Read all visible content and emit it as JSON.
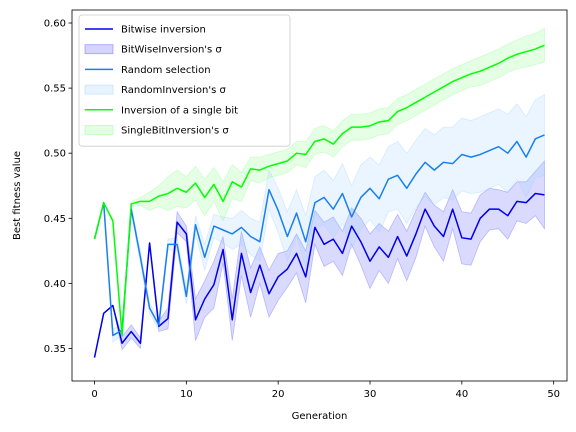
{
  "chart_data": {
    "type": "line",
    "xlabel": "Generation",
    "ylabel": "Best fitness value",
    "xlim": [
      -2.45,
      51.45
    ],
    "ylim": [
      0.325,
      0.61
    ],
    "x_ticks": [
      0,
      10,
      20,
      30,
      40,
      50
    ],
    "y_ticks": [
      0.35,
      0.4,
      0.45,
      0.5,
      0.55,
      0.6
    ],
    "x_tick_labels": [
      "0",
      "10",
      "20",
      "30",
      "40",
      "50"
    ],
    "y_tick_labels": [
      "0.35",
      "0.40",
      "0.45",
      "0.50",
      "0.55",
      "0.60"
    ],
    "grid": false,
    "legend_position": "top-left",
    "x": [
      0,
      1,
      2,
      3,
      4,
      5,
      6,
      7,
      8,
      9,
      10,
      11,
      12,
      13,
      14,
      15,
      16,
      17,
      18,
      19,
      20,
      21,
      22,
      23,
      24,
      25,
      26,
      27,
      28,
      29,
      30,
      31,
      32,
      33,
      34,
      35,
      36,
      37,
      38,
      39,
      40,
      41,
      42,
      43,
      44,
      45,
      46,
      47,
      48,
      49
    ],
    "series": [
      {
        "name": "Bitwise inversion",
        "band_name": "BitWiseInversion's σ",
        "color": "#0000ee",
        "band_color": "#5555ff",
        "values": [
          0.343,
          0.377,
          0.383,
          0.354,
          0.363,
          0.354,
          0.431,
          0.367,
          0.373,
          0.447,
          0.438,
          0.372,
          0.388,
          0.399,
          0.426,
          0.372,
          0.423,
          0.393,
          0.414,
          0.392,
          0.405,
          0.411,
          0.423,
          0.405,
          0.443,
          0.43,
          0.434,
          0.423,
          0.444,
          0.432,
          0.417,
          0.428,
          0.42,
          0.436,
          0.421,
          0.438,
          0.457,
          0.444,
          0.436,
          0.457,
          0.435,
          0.434,
          0.45,
          0.457,
          0.457,
          0.452,
          0.463,
          0.462,
          0.469,
          0.468
        ],
        "upper": [
          0.343,
          0.377,
          0.383,
          0.359,
          0.368,
          0.358,
          0.431,
          0.371,
          0.381,
          0.455,
          0.444,
          0.388,
          0.402,
          0.417,
          0.436,
          0.388,
          0.44,
          0.412,
          0.428,
          0.41,
          0.423,
          0.425,
          0.438,
          0.425,
          0.456,
          0.447,
          0.451,
          0.44,
          0.458,
          0.45,
          0.438,
          0.446,
          0.44,
          0.453,
          0.44,
          0.456,
          0.47,
          0.46,
          0.455,
          0.472,
          0.455,
          0.454,
          0.468,
          0.473,
          0.472,
          0.47,
          0.478,
          0.478,
          0.486,
          0.494
        ],
        "lower": [
          0.343,
          0.377,
          0.383,
          0.349,
          0.358,
          0.35,
          0.431,
          0.363,
          0.365,
          0.439,
          0.432,
          0.356,
          0.374,
          0.381,
          0.416,
          0.356,
          0.406,
          0.374,
          0.4,
          0.374,
          0.387,
          0.397,
          0.408,
          0.385,
          0.43,
          0.413,
          0.417,
          0.406,
          0.43,
          0.414,
          0.396,
          0.41,
          0.4,
          0.419,
          0.402,
          0.42,
          0.444,
          0.428,
          0.417,
          0.442,
          0.415,
          0.414,
          0.432,
          0.441,
          0.442,
          0.434,
          0.448,
          0.446,
          0.452,
          0.442
        ]
      },
      {
        "name": "Random selection",
        "band_name": "RandomInversion's σ",
        "color": "#1a7ff0",
        "band_color": "#9fd0ff",
        "values": [
          0.434,
          0.462,
          0.36,
          0.364,
          0.457,
          0.42,
          0.381,
          0.368,
          0.43,
          0.43,
          0.39,
          0.445,
          0.42,
          0.444,
          0.441,
          0.438,
          0.443,
          0.436,
          0.432,
          0.472,
          0.456,
          0.436,
          0.454,
          0.432,
          0.462,
          0.466,
          0.457,
          0.469,
          0.451,
          0.466,
          0.473,
          0.465,
          0.48,
          0.483,
          0.473,
          0.484,
          0.493,
          0.487,
          0.493,
          0.492,
          0.499,
          0.497,
          0.499,
          0.502,
          0.505,
          0.5,
          0.509,
          0.497,
          0.511,
          0.514
        ],
        "upper": [
          0.434,
          0.462,
          0.365,
          0.368,
          0.46,
          0.425,
          0.385,
          0.372,
          0.434,
          0.435,
          0.396,
          0.452,
          0.43,
          0.453,
          0.451,
          0.45,
          0.456,
          0.45,
          0.447,
          0.487,
          0.473,
          0.455,
          0.472,
          0.452,
          0.482,
          0.487,
          0.479,
          0.492,
          0.475,
          0.491,
          0.497,
          0.491,
          0.505,
          0.509,
          0.5,
          0.51,
          0.519,
          0.514,
          0.52,
          0.52,
          0.527,
          0.525,
          0.528,
          0.531,
          0.534,
          0.53,
          0.538,
          0.528,
          0.541,
          0.545
        ],
        "lower": [
          0.434,
          0.462,
          0.355,
          0.36,
          0.454,
          0.415,
          0.377,
          0.364,
          0.426,
          0.425,
          0.384,
          0.438,
          0.41,
          0.435,
          0.431,
          0.426,
          0.43,
          0.422,
          0.417,
          0.457,
          0.439,
          0.417,
          0.436,
          0.412,
          0.442,
          0.445,
          0.435,
          0.446,
          0.427,
          0.441,
          0.449,
          0.439,
          0.455,
          0.457,
          0.446,
          0.458,
          0.467,
          0.46,
          0.466,
          0.464,
          0.471,
          0.469,
          0.47,
          0.473,
          0.476,
          0.47,
          0.48,
          0.466,
          0.481,
          0.483
        ]
      },
      {
        "name": "Inversion of a single bit",
        "band_name": "SingleBitInversion's σ",
        "color": "#00ff00",
        "band_color": "#88ff88",
        "values": [
          0.434,
          0.462,
          0.448,
          0.36,
          0.461,
          0.463,
          0.463,
          0.467,
          0.469,
          0.473,
          0.47,
          0.477,
          0.466,
          0.476,
          0.463,
          0.478,
          0.474,
          0.488,
          0.487,
          0.49,
          0.492,
          0.494,
          0.5,
          0.499,
          0.509,
          0.511,
          0.507,
          0.515,
          0.52,
          0.52,
          0.521,
          0.524,
          0.525,
          0.532,
          0.535,
          0.539,
          0.543,
          0.547,
          0.551,
          0.555,
          0.558,
          0.561,
          0.563,
          0.566,
          0.569,
          0.573,
          0.576,
          0.578,
          0.58,
          0.583
        ],
        "upper": [
          0.434,
          0.462,
          0.449,
          0.362,
          0.463,
          0.466,
          0.47,
          0.475,
          0.482,
          0.487,
          0.482,
          0.49,
          0.48,
          0.489,
          0.478,
          0.491,
          0.485,
          0.497,
          0.497,
          0.499,
          0.501,
          0.503,
          0.509,
          0.509,
          0.519,
          0.521,
          0.517,
          0.525,
          0.53,
          0.53,
          0.531,
          0.534,
          0.535,
          0.542,
          0.545,
          0.549,
          0.553,
          0.557,
          0.561,
          0.565,
          0.568,
          0.571,
          0.574,
          0.577,
          0.58,
          0.584,
          0.587,
          0.59,
          0.592,
          0.596
        ],
        "lower": [
          0.434,
          0.462,
          0.447,
          0.358,
          0.459,
          0.46,
          0.456,
          0.459,
          0.456,
          0.459,
          0.458,
          0.464,
          0.452,
          0.463,
          0.448,
          0.465,
          0.463,
          0.479,
          0.477,
          0.481,
          0.483,
          0.485,
          0.491,
          0.489,
          0.499,
          0.501,
          0.497,
          0.505,
          0.51,
          0.51,
          0.511,
          0.514,
          0.515,
          0.522,
          0.525,
          0.529,
          0.533,
          0.537,
          0.541,
          0.545,
          0.548,
          0.551,
          0.552,
          0.555,
          0.558,
          0.562,
          0.565,
          0.566,
          0.568,
          0.57
        ]
      }
    ]
  }
}
